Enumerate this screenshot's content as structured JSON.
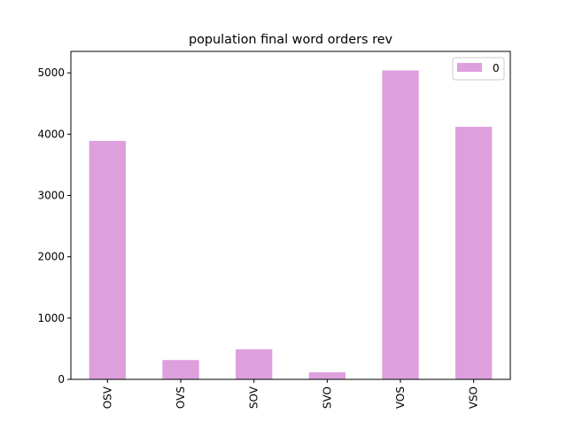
{
  "chart_data": {
    "type": "bar",
    "title": "population final word orders rev",
    "xlabel": "",
    "ylabel": "",
    "categories": [
      "OSV",
      "OVS",
      "SOV",
      "SVO",
      "VOS",
      "VSO"
    ],
    "series": [
      {
        "name": "0",
        "values": [
          3890,
          315,
          490,
          115,
          5040,
          4120
        ],
        "color": "#dda0dd"
      }
    ],
    "ylim": [
      0,
      5350
    ],
    "yticks": [
      0,
      1000,
      2000,
      3000,
      4000,
      5000
    ],
    "legend_placement": "top-right",
    "grid": false
  }
}
